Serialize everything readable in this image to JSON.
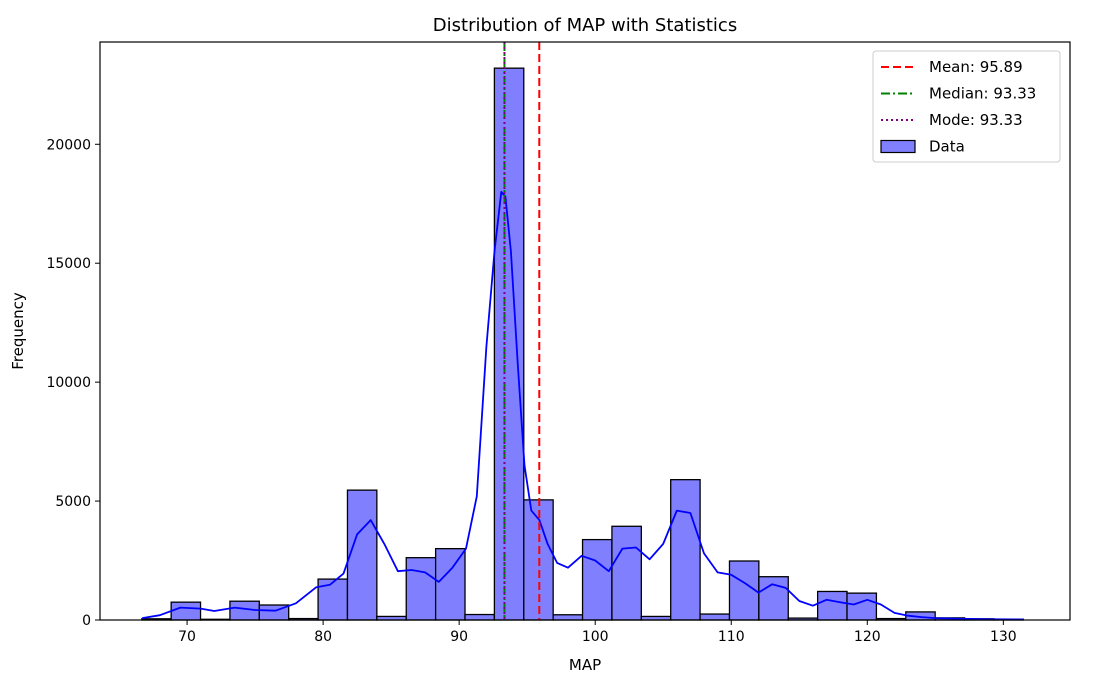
{
  "chart_data": {
    "type": "bar",
    "title": "Distribution of MAP with Statistics",
    "xlabel": "MAP",
    "ylabel": "Frequency",
    "xlim": [
      63.6,
      134.9
    ],
    "ylim": [
      0,
      24300
    ],
    "x_ticks": [
      70,
      80,
      90,
      100,
      110,
      120,
      130
    ],
    "y_ticks": [
      0,
      5000,
      10000,
      15000,
      20000
    ],
    "bin_edges": [
      66.67,
      68.83,
      70.99,
      73.15,
      75.31,
      77.47,
      79.63,
      81.79,
      83.95,
      86.11,
      88.27,
      90.43,
      92.59,
      94.75,
      96.91,
      99.07,
      101.23,
      103.39,
      105.55,
      107.71,
      109.87,
      112.03,
      114.19,
      116.35,
      118.51,
      120.67,
      122.83,
      124.99,
      127.15,
      129.31,
      131.47
    ],
    "series": [
      {
        "name": "Data",
        "color": "#8080ff",
        "edge_color": "#000000",
        "values": [
          50,
          750,
          30,
          790,
          630,
          60,
          1720,
          5460,
          150,
          2620,
          3000,
          230,
          23200,
          5050,
          220,
          3380,
          3940,
          150,
          5900,
          250,
          2480,
          1820,
          80,
          1200,
          1130,
          60,
          340,
          90,
          50,
          30
        ]
      }
    ],
    "kde": {
      "color": "#0000ff",
      "x": [
        66.7,
        68,
        69.5,
        71,
        72,
        73.5,
        75,
        76.5,
        78,
        79.5,
        80.5,
        81.5,
        82.5,
        83.5,
        84.5,
        85.5,
        86.5,
        87.5,
        88.5,
        89.5,
        90.5,
        91.3,
        92,
        92.6,
        93.1,
        93.4,
        93.8,
        94.3,
        94.8,
        95.3,
        95.9,
        96.5,
        97.2,
        98,
        99,
        100,
        101,
        102,
        103,
        104,
        105,
        106,
        107,
        108,
        109,
        110,
        111,
        112,
        113,
        114,
        115,
        116,
        117,
        118,
        119,
        120,
        121,
        122,
        123,
        124,
        125,
        127,
        129,
        131.5
      ],
      "values": [
        80,
        200,
        520,
        480,
        380,
        520,
        420,
        390,
        700,
        1380,
        1480,
        1950,
        3600,
        4200,
        3200,
        2050,
        2100,
        2000,
        1600,
        2200,
        3000,
        5200,
        11500,
        15500,
        18000,
        17800,
        15500,
        10800,
        6500,
        4600,
        4200,
        3200,
        2400,
        2200,
        2700,
        2500,
        2050,
        3000,
        3050,
        2550,
        3200,
        4600,
        4500,
        2800,
        2000,
        1900,
        1550,
        1150,
        1500,
        1350,
        800,
        600,
        850,
        750,
        650,
        850,
        650,
        300,
        180,
        120,
        80,
        50,
        30,
        20
      ]
    },
    "stat_lines": [
      {
        "label": "Mean: 95.89",
        "value": 95.89,
        "color": "#ff0000",
        "style": "dashed"
      },
      {
        "label": "Median: 93.33",
        "value": 93.33,
        "color": "#008000",
        "style": "dashdot"
      },
      {
        "label": "Mode: 93.33",
        "value": 93.33,
        "color": "#800080",
        "style": "dotted"
      }
    ],
    "legend": {
      "placement": "top-right",
      "entries": [
        "Mean: 95.89",
        "Median: 93.33",
        "Mode: 93.33",
        "Data"
      ]
    },
    "grid": false
  }
}
